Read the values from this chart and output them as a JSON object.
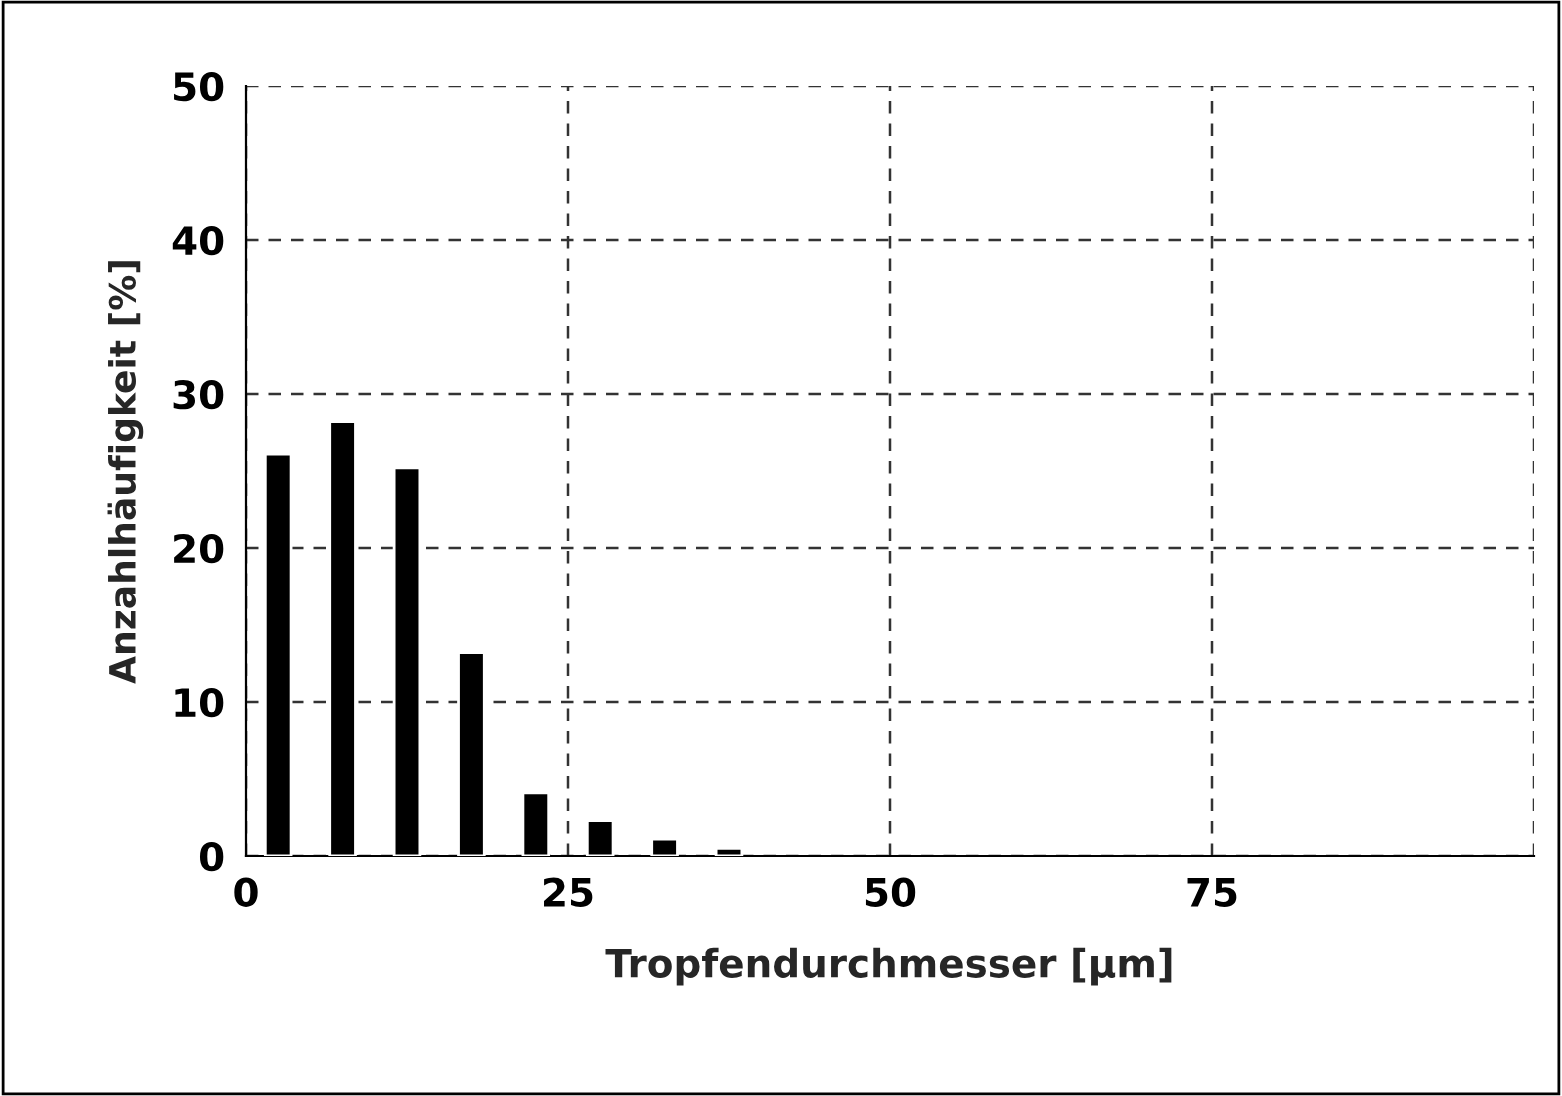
{
  "chart_data": {
    "type": "bar",
    "xlabel": "Tropfendurchmesser [μm]",
    "ylabel": "Anzahlhäufigkeit [%]",
    "x": [
      2.5,
      7.5,
      12.5,
      17.5,
      22.5,
      27.5,
      32.5,
      37.5
    ],
    "values": [
      26.1,
      28.2,
      25.2,
      13.2,
      4.1,
      2.3,
      1.1,
      0.5
    ],
    "color": "#000000",
    "xlim": [
      0,
      100
    ],
    "xticks": [
      0,
      25,
      50,
      75,
      {
        "value": 100,
        "label": null
      }
    ],
    "ylim": [
      0,
      50
    ],
    "yticks": [
      0,
      10,
      20,
      30,
      40,
      50
    ],
    "grid": true
  }
}
